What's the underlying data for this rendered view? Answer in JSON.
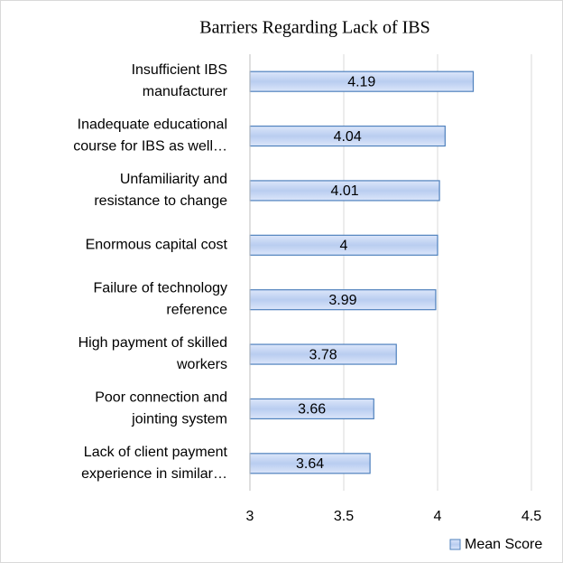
{
  "chart_data": {
    "type": "bar",
    "orientation": "horizontal",
    "title": "Barriers Regarding Lack of IBS",
    "categories": [
      [
        "Insufficient IBS",
        "manufacturer"
      ],
      [
        "Inadequate educational",
        "course for IBS as well…"
      ],
      [
        "Unfamiliarity and",
        "resistance to change"
      ],
      [
        "Enormous capital cost"
      ],
      [
        "Failure of technology",
        "reference"
      ],
      [
        "High payment of skilled",
        "workers"
      ],
      [
        "Poor connection and",
        "jointing system"
      ],
      [
        "Lack of client payment",
        "experience in similar…"
      ]
    ],
    "series": [
      {
        "name": "Mean Score",
        "color": "#b9cdf0",
        "values": [
          4.19,
          4.04,
          4.01,
          4,
          3.99,
          3.78,
          3.66,
          3.64
        ]
      }
    ],
    "xlim": [
      3,
      4.5
    ],
    "xticks": [
      3,
      3.5,
      4,
      4.5
    ],
    "grid": true,
    "legend": "bottom-right"
  }
}
